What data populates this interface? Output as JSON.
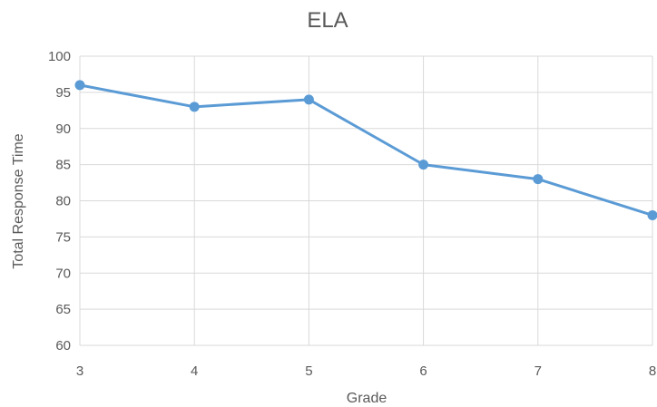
{
  "chart_data": {
    "type": "line",
    "title": "ELA",
    "xlabel": "Grade",
    "ylabel": "Total Response Time",
    "x": [
      "3",
      "4",
      "5",
      "6",
      "7",
      "8"
    ],
    "series": [
      {
        "values": [
          96,
          93,
          94,
          85,
          83,
          78
        ]
      }
    ],
    "ylim": [
      60,
      100
    ],
    "yticks": [
      60,
      65,
      70,
      75,
      80,
      85,
      90,
      95,
      100
    ],
    "grid": true,
    "colors": {
      "line": "#5b9bd5",
      "grid": "#d9d9d9",
      "text": "#595959"
    }
  }
}
